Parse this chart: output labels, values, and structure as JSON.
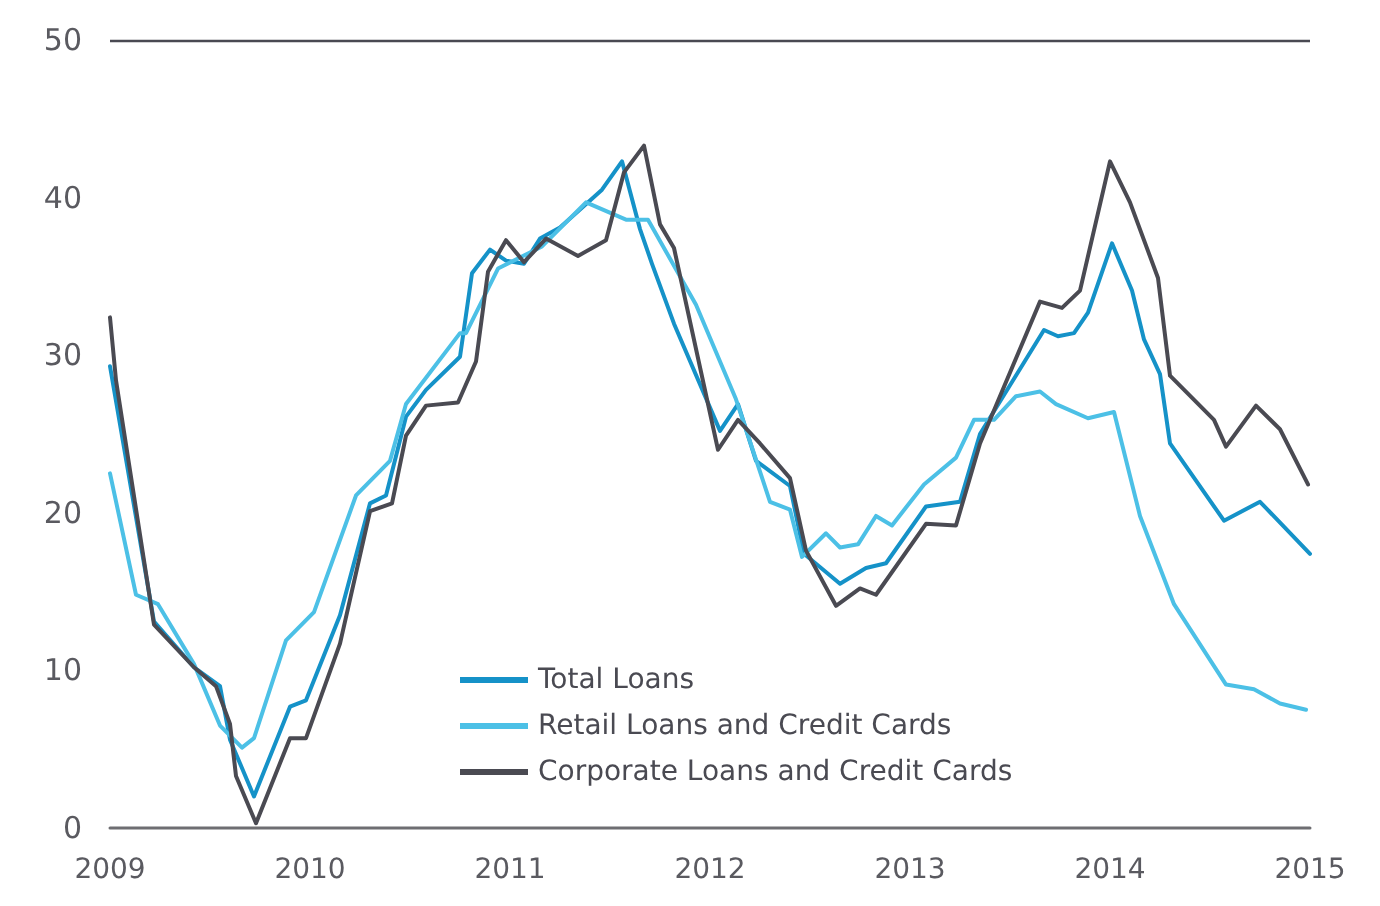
{
  "chart_data": {
    "type": "line",
    "xlim": [
      2009,
      2015
    ],
    "xticks": [
      2009,
      2010,
      2011,
      2012,
      2013,
      2014,
      2015
    ],
    "ylim": [
      0,
      50
    ],
    "yticks": [
      0,
      10,
      20,
      30,
      40,
      50
    ],
    "grid": false,
    "legend": "bottom",
    "marker": "none",
    "line_style": "solid",
    "ref_lines": [
      {
        "axis": "y",
        "value": 50,
        "color": "#4a4a52"
      }
    ],
    "series": [
      {
        "name": "Total Loans",
        "color": "#1592c8",
        "x": [
          2009.0,
          2009.22,
          2009.42,
          2009.55,
          2009.6,
          2009.72,
          2009.9,
          2009.98,
          2010.15,
          2010.3,
          2010.38,
          2010.48,
          2010.58,
          2010.75,
          2010.81,
          2010.9,
          2010.98,
          2011.07,
          2011.15,
          2011.25,
          2011.46,
          2011.56,
          2011.65,
          2011.71,
          2011.82,
          2012.05,
          2012.14,
          2012.23,
          2012.4,
          2012.47,
          2012.65,
          2012.78,
          2012.88,
          2013.08,
          2013.25,
          2013.35,
          2013.67,
          2013.74,
          2013.82,
          2013.89,
          2014.01,
          2014.11,
          2014.17,
          2014.25,
          2014.3,
          2014.57,
          2014.75,
          2015.0
        ],
        "values": [
          29.3,
          13.1,
          10.2,
          9.0,
          5.6,
          2.0,
          7.7,
          8.1,
          13.5,
          20.6,
          21.1,
          26.1,
          27.8,
          29.9,
          35.2,
          36.7,
          36.0,
          35.8,
          37.4,
          38.1,
          40.5,
          42.3,
          38.0,
          35.8,
          32.0,
          25.2,
          26.9,
          23.3,
          21.7,
          17.4,
          15.5,
          16.5,
          16.8,
          20.4,
          20.7,
          25.0,
          31.6,
          31.2,
          31.4,
          32.7,
          37.1,
          34.1,
          31.0,
          28.8,
          24.4,
          19.5,
          20.7,
          17.4
        ]
      },
      {
        "name": "Retail Loans and Credit Cards",
        "color": "#4cc0e6",
        "x": [
          2009.0,
          2009.13,
          2009.24,
          2009.42,
          2009.55,
          2009.66,
          2009.72,
          2009.88,
          2010.02,
          2010.23,
          2010.4,
          2010.48,
          2010.75,
          2010.78,
          2010.94,
          2011.16,
          2011.38,
          2011.58,
          2011.69,
          2011.93,
          2012.13,
          2012.3,
          2012.4,
          2012.46,
          2012.58,
          2012.65,
          2012.74,
          2012.83,
          2012.91,
          2013.07,
          2013.23,
          2013.32,
          2013.42,
          2013.53,
          2013.65,
          2013.73,
          2013.89,
          2014.02,
          2014.15,
          2014.32,
          2014.58,
          2014.72,
          2014.85,
          2014.98
        ],
        "values": [
          22.5,
          14.8,
          14.2,
          10.4,
          6.5,
          5.1,
          5.7,
          11.9,
          13.7,
          21.1,
          23.3,
          26.9,
          31.4,
          31.4,
          35.5,
          36.9,
          39.7,
          38.6,
          38.6,
          33.2,
          27.2,
          20.7,
          20.2,
          17.2,
          18.7,
          17.8,
          18.0,
          19.8,
          19.2,
          21.8,
          23.5,
          25.9,
          25.9,
          27.4,
          27.7,
          26.9,
          26.0,
          26.4,
          19.8,
          14.2,
          9.1,
          8.8,
          7.9,
          7.5
        ]
      },
      {
        "name": "Corporate Loans and Credit Cards",
        "color": "#4a4a52",
        "x": [
          2009.0,
          2009.03,
          2009.22,
          2009.42,
          2009.53,
          2009.6,
          2009.63,
          2009.73,
          2009.9,
          2009.98,
          2010.15,
          2010.3,
          2010.41,
          2010.48,
          2010.58,
          2010.74,
          2010.83,
          2010.89,
          2010.98,
          2011.07,
          2011.18,
          2011.34,
          2011.48,
          2011.57,
          2011.67,
          2011.75,
          2011.82,
          2012.04,
          2012.14,
          2012.25,
          2012.4,
          2012.48,
          2012.63,
          2012.75,
          2012.83,
          2013.08,
          2013.23,
          2013.35,
          2013.65,
          2013.76,
          2013.85,
          2014.0,
          2014.1,
          2014.24,
          2014.3,
          2014.52,
          2014.58,
          2014.73,
          2014.85,
          2014.99
        ],
        "values": [
          32.4,
          28.4,
          12.9,
          10.2,
          9.0,
          6.6,
          3.3,
          0.3,
          5.7,
          5.7,
          11.7,
          20.1,
          20.6,
          24.9,
          26.8,
          27.0,
          29.6,
          35.3,
          37.3,
          35.9,
          37.4,
          36.3,
          37.3,
          41.6,
          43.3,
          38.3,
          36.8,
          24.0,
          25.9,
          24.4,
          22.2,
          17.6,
          14.1,
          15.2,
          14.8,
          19.3,
          19.2,
          24.4,
          33.4,
          33.0,
          34.1,
          42.3,
          39.7,
          34.9,
          28.7,
          25.9,
          24.2,
          26.8,
          25.3,
          21.8
        ]
      }
    ]
  }
}
